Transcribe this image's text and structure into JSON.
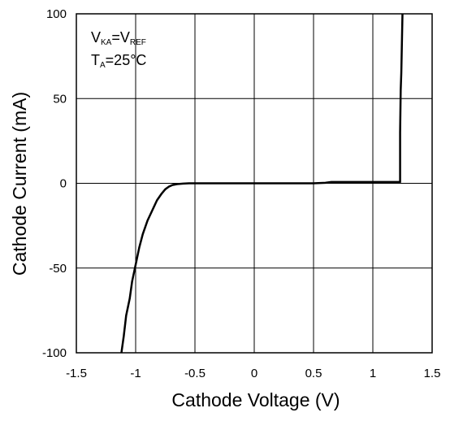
{
  "chart_data": {
    "type": "line",
    "title": "",
    "xlabel": "Cathode Voltage (V)",
    "ylabel": "Cathode Current (mA)",
    "xlim": [
      -1.5,
      1.5
    ],
    "ylim": [
      -100,
      100
    ],
    "xticks": [
      "-1.5",
      "-1",
      "-0.5",
      "0",
      "0.5",
      "1",
      "1.5"
    ],
    "yticks": [
      "100",
      "50",
      "0",
      "-50",
      "-100"
    ],
    "grid": true,
    "legend": "none",
    "annotations": {
      "line1": {
        "main": "V",
        "sub1": "KA",
        "mid": "=V",
        "sub2": "REF"
      },
      "line2": {
        "main": "T",
        "sub1": "A",
        "rest": "=25°C"
      }
    },
    "series": [
      {
        "x": [
          -1.12,
          -1.1,
          -1.08,
          -1.05,
          -1.03,
          -1.0,
          -0.97,
          -0.94,
          -0.9,
          -0.86,
          -0.82,
          -0.78,
          -0.75,
          -0.72,
          -0.69,
          -0.65,
          -0.6,
          -0.55,
          -0.5,
          -0.3,
          0.0,
          0.3,
          0.5,
          0.6,
          0.65,
          1.0,
          1.23,
          1.23,
          1.235,
          1.24,
          1.25
        ],
        "y": [
          -100,
          -90,
          -78,
          -68,
          -58,
          -48,
          -38,
          -30,
          -22,
          -16,
          -10,
          -6,
          -3.5,
          -2,
          -1,
          -0.5,
          -0.2,
          0,
          0,
          0,
          0,
          0,
          0,
          0.3,
          0.8,
          0.8,
          0.8,
          30,
          55,
          65,
          100
        ]
      }
    ]
  }
}
